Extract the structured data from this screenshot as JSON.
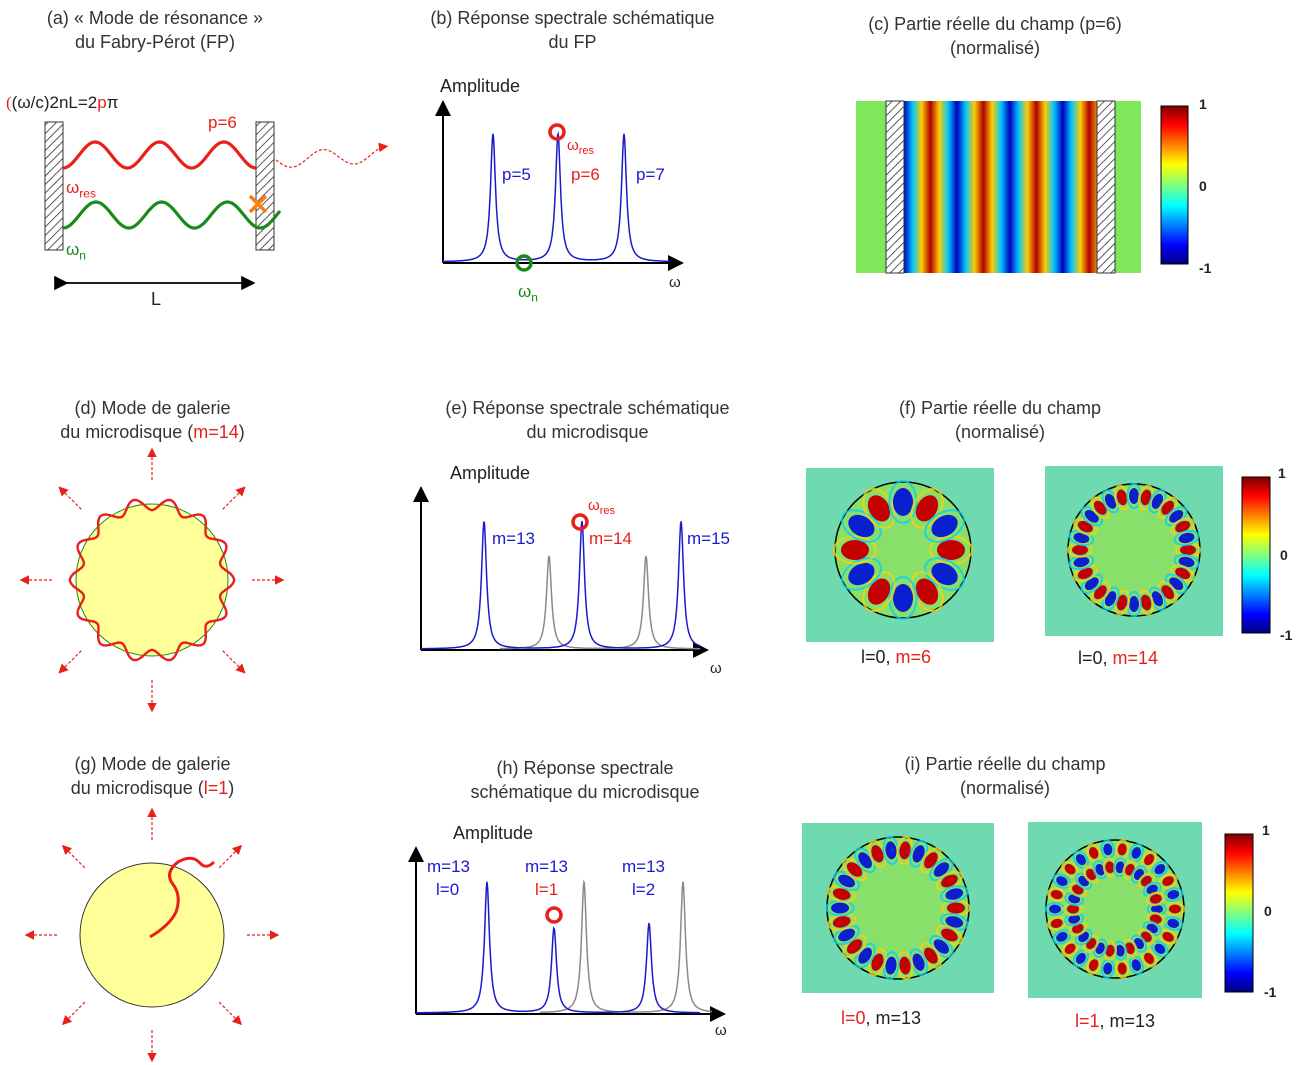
{
  "panel_a": {
    "title_1": "(a) « Mode de résonance »",
    "title_2": "du Fabry-Pérot (FP)",
    "eq_prefix": "(ω/c)2nL=2",
    "eq_p": "p",
    "eq_suffix": "π",
    "p_label": "p=6",
    "w_res_base": "ω",
    "w_res_sub": "res",
    "w_n_base": "ω",
    "w_n_sub": "n",
    "L_label": "L"
  },
  "panel_b": {
    "title_1": "(b) Réponse spectrale schématique",
    "title_2": "du FP",
    "amp": "Amplitude",
    "p5": "p=5",
    "p6": "p=6",
    "p7": "p=7",
    "w_res_base": "ω",
    "w_res_sub": "res",
    "w_n_base": "ω",
    "w_n_sub": "n",
    "omega": "ω"
  },
  "panel_c": {
    "title_1": "(c) Partie réelle du champ (p=6)",
    "title_2": "(normalisé)",
    "cb_top": "1",
    "cb_mid": "0",
    "cb_bot": "-1"
  },
  "panel_d": {
    "title_1": "(d) Mode de galerie",
    "title_2a": "du microdisque (",
    "title_2b": "m=14",
    "title_2c": ")"
  },
  "panel_e": {
    "title_1": "(e) Réponse spectrale schématique",
    "title_2": "du microdisque",
    "amp": "Amplitude",
    "m13": "m=13",
    "m14": "m=14",
    "m15": "m=15",
    "w_res_base": "ω",
    "w_res_sub": "res",
    "omega": "ω"
  },
  "panel_f": {
    "title_1": "(f) Partie réelle du champ",
    "title_2": "(normalisé)",
    "left_a": "l=0, ",
    "left_b": "m=6",
    "right_a": "l=0, ",
    "right_b": "m=14",
    "cb_top": "1",
    "cb_mid": "0",
    "cb_bot": "-1"
  },
  "panel_g": {
    "title_1": "(g) Mode de galerie",
    "title_2a": "du microdisque (",
    "title_2b": "l=1",
    "title_2c": ")"
  },
  "panel_h": {
    "title_1": "(h) Réponse spectrale",
    "title_2": "schématique du microdisque",
    "amp": "Amplitude",
    "m1": "m=13",
    "l1": "l=0",
    "m2": "m=13",
    "l2": "l=1",
    "m3": "m=13",
    "l3": "l=2",
    "omega": "ω"
  },
  "panel_i": {
    "title_1": "(i) Partie réelle du champ",
    "title_2": "(normalisé)",
    "left_a": "l=0",
    "left_b": ", m=13",
    "right_a": "l=1",
    "right_b": ", m=13",
    "cb_top": "1",
    "cb_mid": "0",
    "cb_bot": "-1"
  },
  "colors": {
    "red": "#e8201a",
    "blue": "#1a1acd",
    "green": "#1a8a1a",
    "grey": "#8a8a8a",
    "disk": "#ffff99"
  }
}
